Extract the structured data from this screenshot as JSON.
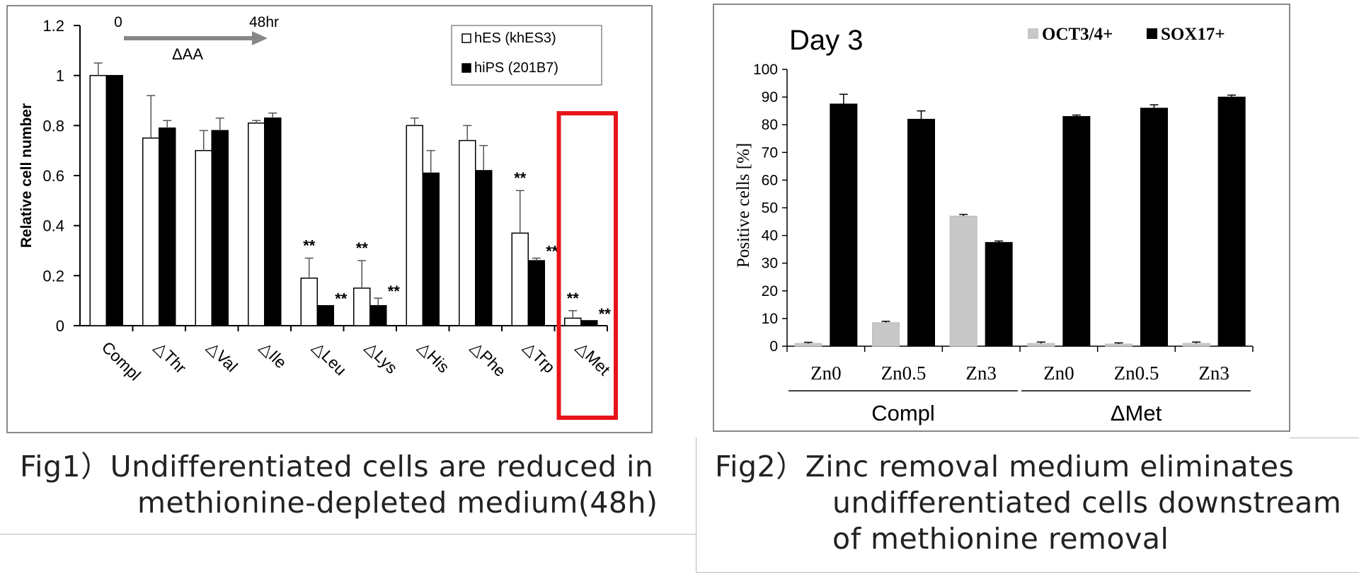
{
  "figures": [
    {
      "caption_lines": [
        "Fig1）Undifferentiated cells are reduced in",
        "methionine-depleted medium(48h)"
      ],
      "chart": {
        "type": "bar",
        "ylabel": "Relative cell number",
        "ylim": [
          0,
          1.2
        ],
        "yticks": [
          0,
          0.2,
          0.4,
          0.6,
          0.8,
          1,
          1.2
        ],
        "categories": [
          "Compl",
          "△Thr",
          "△Val",
          "△Ile",
          "△Leu",
          "△Lys",
          "△His",
          "△Phe",
          "△Trp",
          "△Met"
        ],
        "timeline": {
          "start_label": "0",
          "end_label": "48hr",
          "label": "ΔAA"
        },
        "legend": {
          "position": "top-right"
        },
        "highlight_category": "△Met",
        "highlight_color": "#e8141b",
        "series": [
          {
            "name": "hES (khES3)",
            "fill": "#ffffff",
            "values": [
              1.0,
              0.75,
              0.7,
              0.81,
              0.19,
              0.15,
              0.8,
              0.74,
              0.37,
              0.03
            ],
            "errors": [
              0.05,
              0.17,
              0.08,
              0.01,
              0.08,
              0.11,
              0.03,
              0.06,
              0.17,
              0.03
            ],
            "marks": [
              "",
              "",
              "",
              "",
              "**",
              "**",
              "",
              "",
              "**",
              "**"
            ]
          },
          {
            "name": "hiPS (201B7)",
            "fill": "#000000",
            "values": [
              1.0,
              0.79,
              0.78,
              0.83,
              0.08,
              0.08,
              0.61,
              0.62,
              0.26,
              0.02
            ],
            "errors": [
              0.0,
              0.03,
              0.05,
              0.02,
              0.0,
              0.03,
              0.09,
              0.1,
              0.01,
              0.0
            ],
            "marks": [
              "",
              "",
              "",
              "",
              "**",
              "**",
              "",
              "",
              "**",
              "**"
            ]
          }
        ]
      }
    },
    {
      "caption_lines": [
        "Fig2）Zinc removal medium eliminates",
        "undifferentiated cells downstream",
        "of methionine removal"
      ],
      "chart": {
        "type": "bar",
        "title": "Day 3",
        "ylabel": "Positive cells [%]",
        "ylim": [
          0,
          100
        ],
        "yticks": [
          0,
          10,
          20,
          30,
          40,
          50,
          60,
          70,
          80,
          90,
          100
        ],
        "categories": [
          "Zn0",
          "Zn0.5",
          "Zn3",
          "Zn0",
          "Zn0.5",
          "Zn3"
        ],
        "groups": [
          {
            "label": "Compl",
            "span": [
              0,
              2
            ]
          },
          {
            "label": "ΔMet",
            "span": [
              3,
              5
            ]
          }
        ],
        "legend": {
          "position": "top"
        },
        "series": [
          {
            "name": "OCT3/4+",
            "fill": "#c8c8c8",
            "values": [
              1,
              8.5,
              47,
              1,
              0.8,
              1
            ],
            "errors": [
              0.4,
              0.5,
              0.6,
              0.5,
              0.4,
              0.5
            ]
          },
          {
            "name": "SOX17+",
            "fill": "#000000",
            "values": [
              87.5,
              82,
              37.5,
              83,
              86,
              90
            ],
            "errors": [
              3.5,
              3,
              0.5,
              0.5,
              1.2,
              0.7
            ]
          }
        ]
      }
    }
  ]
}
